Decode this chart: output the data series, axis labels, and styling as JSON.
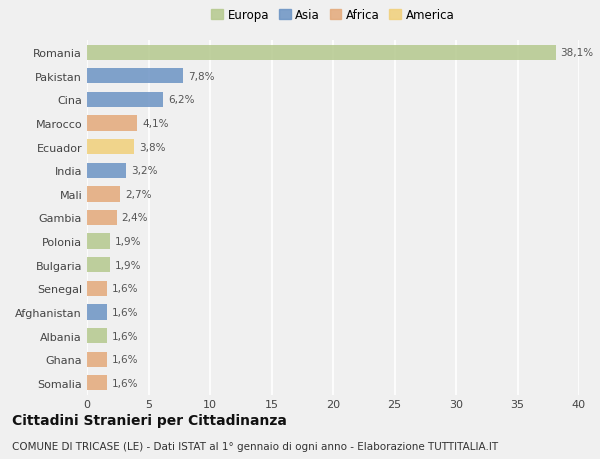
{
  "countries": [
    "Romania",
    "Pakistan",
    "Cina",
    "Marocco",
    "Ecuador",
    "India",
    "Mali",
    "Gambia",
    "Polonia",
    "Bulgaria",
    "Senegal",
    "Afghanistan",
    "Albania",
    "Ghana",
    "Somalia"
  ],
  "values": [
    38.1,
    7.8,
    6.2,
    4.1,
    3.8,
    3.2,
    2.7,
    2.4,
    1.9,
    1.9,
    1.6,
    1.6,
    1.6,
    1.6,
    1.6
  ],
  "labels": [
    "38,1%",
    "7,8%",
    "6,2%",
    "4,1%",
    "3,8%",
    "3,2%",
    "2,7%",
    "2,4%",
    "1,9%",
    "1,9%",
    "1,6%",
    "1,6%",
    "1,6%",
    "1,6%",
    "1,6%"
  ],
  "continents": [
    "Europa",
    "Asia",
    "Asia",
    "Africa",
    "America",
    "Asia",
    "Africa",
    "Africa",
    "Europa",
    "Europa",
    "Africa",
    "Asia",
    "Europa",
    "Africa",
    "Africa"
  ],
  "continent_colors": {
    "Europa": "#b5c98e",
    "Asia": "#6b93c4",
    "Africa": "#e4a97a",
    "America": "#f0d07a"
  },
  "legend_order": [
    "Europa",
    "Asia",
    "Africa",
    "America"
  ],
  "title": "Cittadini Stranieri per Cittadinanza",
  "subtitle": "COMUNE DI TRICASE (LE) - Dati ISTAT al 1° gennaio di ogni anno - Elaborazione TUTTITALIA.IT",
  "xlim": [
    0,
    40
  ],
  "xticks": [
    0,
    5,
    10,
    15,
    20,
    25,
    30,
    35,
    40
  ],
  "bg_color": "#f0f0f0",
  "grid_color": "#ffffff",
  "title_fontsize": 10,
  "subtitle_fontsize": 7.5,
  "bar_label_fontsize": 7.5,
  "tick_fontsize": 8,
  "legend_fontsize": 8.5
}
